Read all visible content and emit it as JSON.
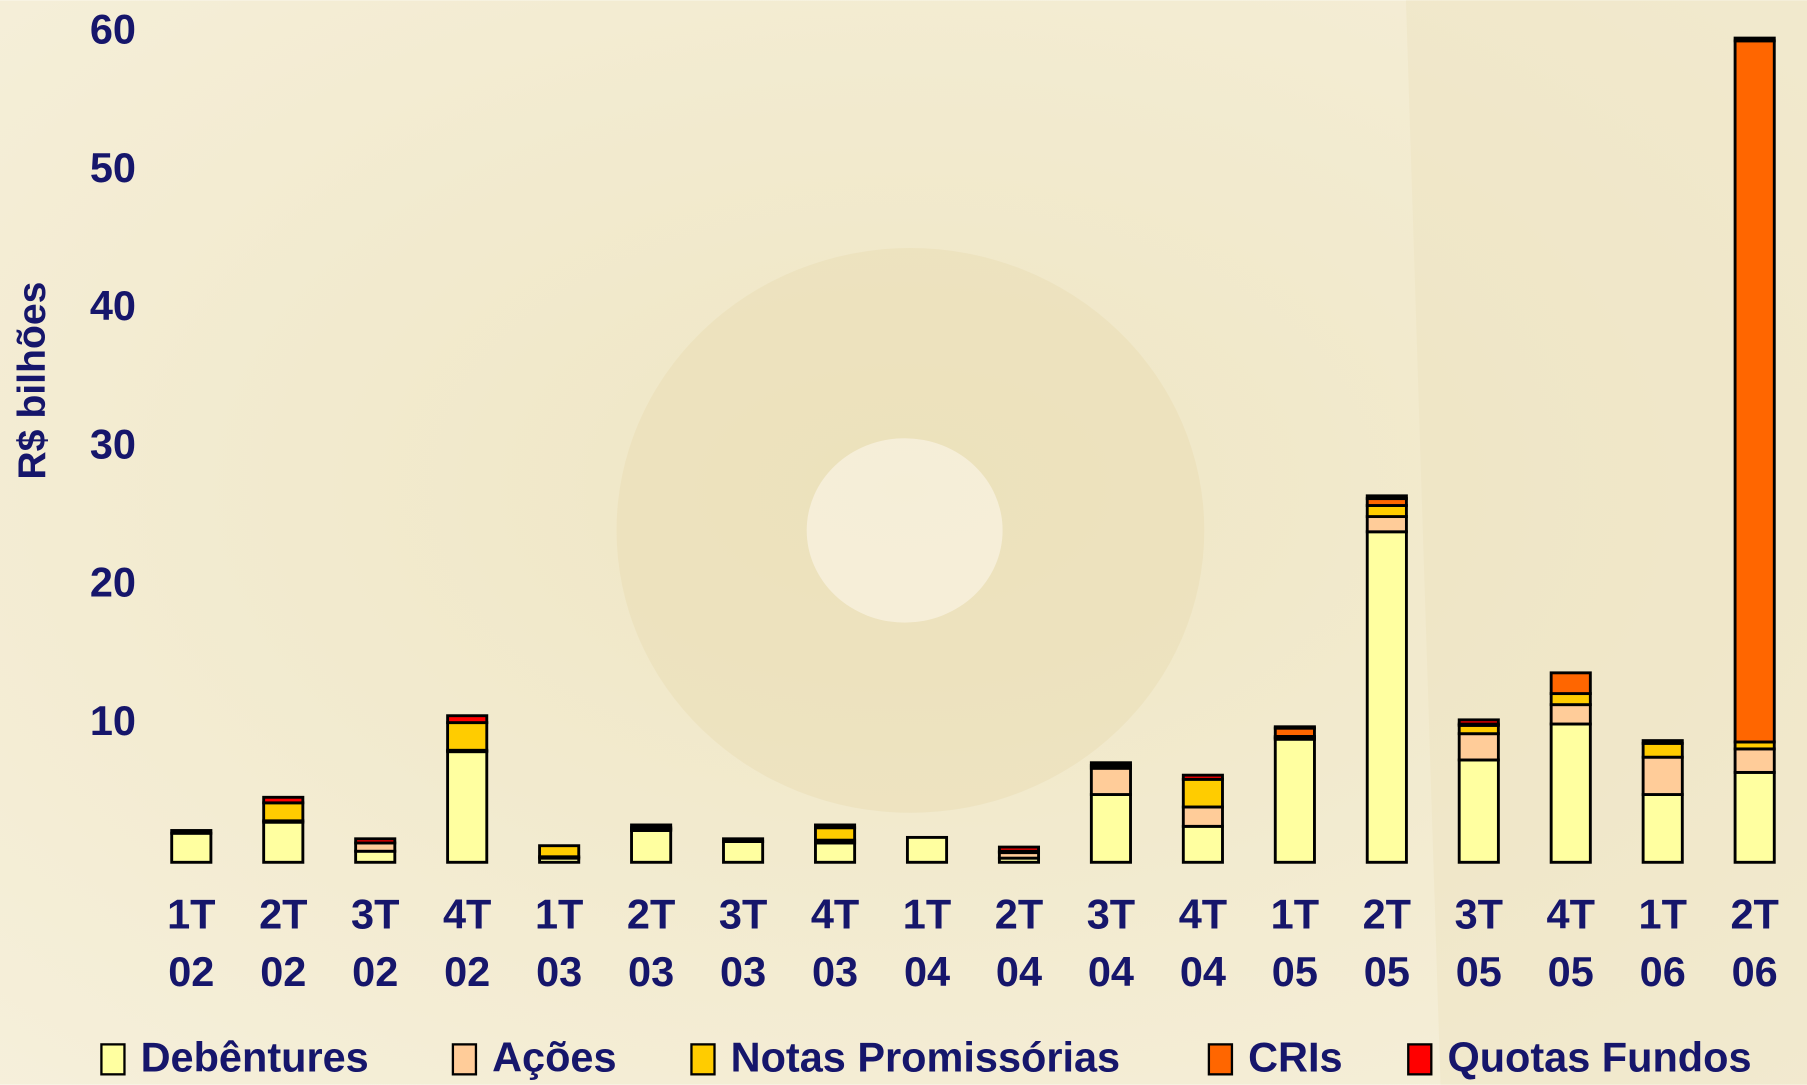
{
  "chart_data": {
    "type": "stacked_bar",
    "y_label": "R$ bilhões",
    "categories": [
      [
        "1T",
        "02"
      ],
      [
        "2T",
        "02"
      ],
      [
        "3T",
        "02"
      ],
      [
        "4T",
        "02"
      ],
      [
        "1T",
        "03"
      ],
      [
        "2T",
        "03"
      ],
      [
        "3T",
        "03"
      ],
      [
        "4T",
        "03"
      ],
      [
        "1T",
        "04"
      ],
      [
        "2T",
        "04"
      ],
      [
        "3T",
        "04"
      ],
      [
        "4T",
        "04"
      ],
      [
        "1T",
        "05"
      ],
      [
        "2T",
        "05"
      ],
      [
        "3T",
        "05"
      ],
      [
        "4T",
        "05"
      ],
      [
        "1T",
        "06"
      ],
      [
        "2T",
        "06"
      ]
    ],
    "series": [
      {
        "name": "Debêntures",
        "color": "#ffffa0",
        "values": [
          2.1,
          2.9,
          0.8,
          8.0,
          0.3,
          2.3,
          1.5,
          1.4,
          1.8,
          0.3,
          4.9,
          2.6,
          8.9,
          23.9,
          7.4,
          10.0,
          4.9,
          6.5
        ]
      },
      {
        "name": "Ações",
        "color": "#ffcc99",
        "values": [
          0.2,
          0.1,
          0.6,
          0.1,
          0.1,
          0.1,
          0,
          0.2,
          0,
          0.4,
          1.9,
          1.4,
          0.1,
          1.1,
          1.9,
          1.4,
          2.7,
          1.7
        ]
      },
      {
        "name": "Notas Promissórias",
        "color": "#ffcc00",
        "values": [
          0,
          1.3,
          0,
          2.0,
          0.8,
          0.1,
          0,
          0.9,
          0,
          0.1,
          0.2,
          2.0,
          0.1,
          0.8,
          0.6,
          0.8,
          1.0,
          0.5
        ]
      },
      {
        "name": "CRIs",
        "color": "#ff6600",
        "values": [
          0,
          0,
          0,
          0,
          0,
          0,
          0,
          0,
          0,
          0,
          0,
          0,
          0.6,
          0.5,
          0.1,
          1.5,
          0,
          50.7
        ]
      },
      {
        "name": "Quotas Fundos",
        "color": "#ff0000",
        "values": [
          0,
          0.4,
          0.3,
          0.5,
          0,
          0.2,
          0.2,
          0.2,
          0,
          0.3,
          0.2,
          0.3,
          0.1,
          0.2,
          0.3,
          0,
          0.2,
          0.2
        ]
      }
    ],
    "ylim": [
      0,
      60
    ],
    "yticks": [
      10,
      20,
      30,
      40,
      50,
      60
    ],
    "grid": false,
    "legend": "bottom"
  }
}
